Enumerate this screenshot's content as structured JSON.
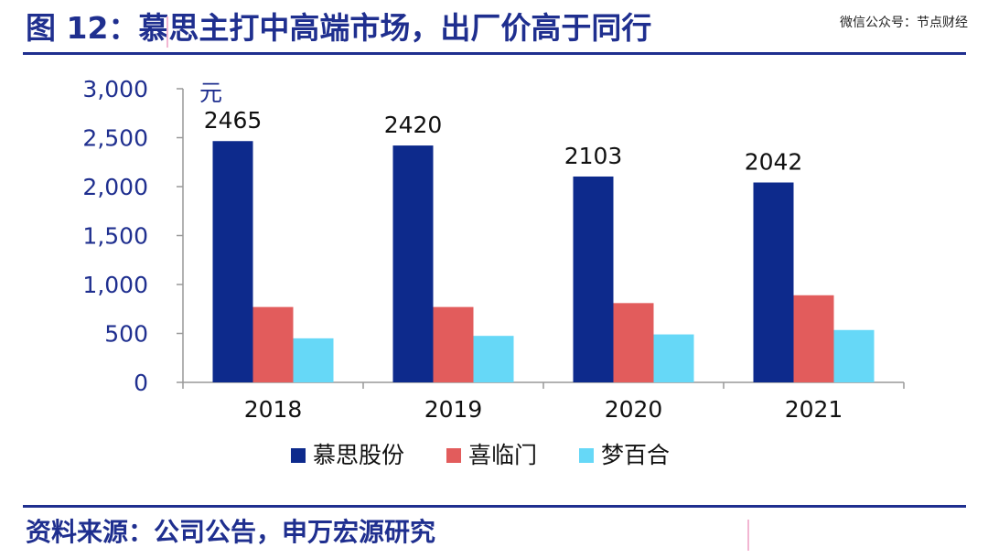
{
  "header": {
    "title_label": "图 12：",
    "title_text": "慕思主打中高端市场，出厂价高于同行",
    "watermark": "微信公众号：节点财经"
  },
  "footer": {
    "source": "资料来源：公司公告，申万宏源研究"
  },
  "colors": {
    "accent": "#1f2f8f"
  },
  "chart_data": {
    "type": "bar",
    "title": "",
    "ylabel": "元",
    "xlabel": "",
    "ylim": [
      0,
      3000
    ],
    "yticks": [
      0,
      500,
      1000,
      1500,
      2000,
      2500,
      3000
    ],
    "ytick_labels": [
      "0",
      "500",
      "1,000",
      "1,500",
      "2,000",
      "2,500",
      "3,000"
    ],
    "categories": [
      "2018",
      "2019",
      "2020",
      "2021"
    ],
    "series": [
      {
        "name": "慕思股份",
        "color": "#0d2a8c",
        "values": [
          2465,
          2420,
          2103,
          2042
        ],
        "show_labels": true
      },
      {
        "name": "喜临门",
        "color": "#e25c5c",
        "values": [
          770,
          770,
          810,
          890
        ],
        "show_labels": false
      },
      {
        "name": "梦百合",
        "color": "#66d8f7",
        "values": [
          450,
          475,
          490,
          535
        ],
        "show_labels": false
      }
    ],
    "legend_position": "bottom"
  }
}
